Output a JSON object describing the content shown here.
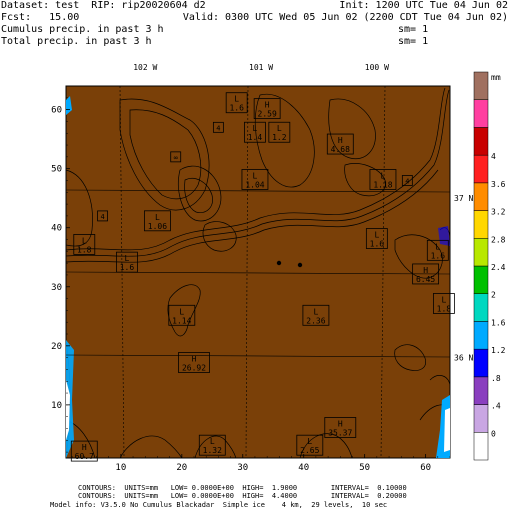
{
  "header": {
    "line1_left": "Dataset: test  RIP: rip20020604 d2",
    "line1_right": "Init: 1200 UTC Tue 04 Jun 02",
    "line2_left": "Fcst:   15.00",
    "line2_right": "Valid: 0300 UTC Wed 05 Jun 02 (2200 CDT Tue 04 Jun 02)",
    "line3_left": "Cumulus precip. in past 3 h",
    "line3_right": "sm= 1",
    "line4_left": "Total precip. in past 3 h",
    "line4_right": "sm= 1"
  },
  "footer": {
    "line1": "CONTOURS:  UNITS=mm   LOW= 0.0000E+00  HIGH=  1.9000        INTERVAL=  0.10000",
    "line2": "CONTOURS:  UNITS=mm   LOW= 0.0000E+00  HIGH=  4.4000        INTERVAL=  0.20000",
    "line3": "Model info: V3.5.0 No Cumulus Blackadar  Simple ice    4 km,  29 levels,  10 sec"
  },
  "colors": {
    "background_fill": "#7a4008",
    "contour_line": "#000000",
    "grid_line": "#000000"
  },
  "chart_data": {
    "type": "heatmap",
    "xlim": [
      1,
      64
    ],
    "ylim": [
      1,
      64
    ],
    "x_ticks": [
      10,
      20,
      30,
      40,
      50,
      60
    ],
    "y_ticks": [
      10,
      20,
      30,
      40,
      50,
      60
    ],
    "longitude_labels": [
      {
        "text": "102 W",
        "x": 14
      },
      {
        "text": "101 W",
        "x": 33
      },
      {
        "text": "100 W",
        "x": 52
      }
    ],
    "latitude_labels": [
      {
        "text": "37 N",
        "y": 45
      },
      {
        "text": "36 N",
        "y": 18
      }
    ],
    "extrema": [
      {
        "kind": "L",
        "value": "1.6",
        "x": 29,
        "y": 61
      },
      {
        "kind": "H",
        "value": "2.59",
        "x": 34,
        "y": 60
      },
      {
        "kind": "L",
        "value": "4",
        "x": 26,
        "y": 57
      },
      {
        "kind": "L",
        "value": "1.4",
        "x": 32,
        "y": 56
      },
      {
        "kind": "L",
        "value": "1.2",
        "x": 36,
        "y": 56
      },
      {
        "kind": "H",
        "value": "4.68",
        "x": 46,
        "y": 54
      },
      {
        "kind": "L",
        "value": "∞",
        "x": 19,
        "y": 52
      },
      {
        "kind": "L",
        "value": "1.04",
        "x": 32,
        "y": 48
      },
      {
        "kind": "L",
        "value": "1.18",
        "x": 53,
        "y": 48
      },
      {
        "kind": "L",
        "value": "4",
        "x": 57,
        "y": 48
      },
      {
        "kind": "L",
        "value": "4",
        "x": 7,
        "y": 42
      },
      {
        "kind": "L",
        "value": "1.06",
        "x": 16,
        "y": 41
      },
      {
        "kind": "L",
        "value": "1.8",
        "x": 4,
        "y": 37
      },
      {
        "kind": "L",
        "value": "1.6",
        "x": 11,
        "y": 34
      },
      {
        "kind": "L",
        "value": "1.6",
        "x": 52,
        "y": 38
      },
      {
        "kind": "L",
        "value": "1.6",
        "x": 62,
        "y": 36
      },
      {
        "kind": "H",
        "value": "6.45",
        "x": 60,
        "y": 32
      },
      {
        "kind": "L",
        "value": "1.8",
        "x": 63,
        "y": 27
      },
      {
        "kind": "L",
        "value": "1.14",
        "x": 20,
        "y": 25
      },
      {
        "kind": "L",
        "value": "2.36",
        "x": 42,
        "y": 25
      },
      {
        "kind": "H",
        "value": "26.92",
        "x": 22,
        "y": 17
      },
      {
        "kind": "H",
        "value": "35.37",
        "x": 46,
        "y": 6
      },
      {
        "kind": "L",
        "value": "2.65",
        "x": 41,
        "y": 3
      },
      {
        "kind": "L",
        "value": "1.32",
        "x": 25,
        "y": 3
      },
      {
        "kind": "H",
        "value": "60.7",
        "x": 4,
        "y": 2
      }
    ],
    "colorbar": {
      "units": "mm",
      "levels": [
        0,
        0.4,
        0.8,
        1.2,
        1.6,
        2,
        2.4,
        2.8,
        3.2,
        3.6,
        4
      ],
      "labels": [
        "0",
        ".4",
        ".8",
        "1.2",
        "1.6",
        "2",
        "2.4",
        "2.8",
        "3.2",
        "3.6",
        "4"
      ],
      "colors": [
        "#ffffff",
        "#c9a6e3",
        "#8a3fbf",
        "#0000ff",
        "#00aaff",
        "#00d8c0",
        "#00c000",
        "#b8e800",
        "#ffd700",
        "#ff8c00",
        "#ff2020",
        "#c80000",
        "#ff3fa0",
        "#a07060"
      ]
    }
  }
}
